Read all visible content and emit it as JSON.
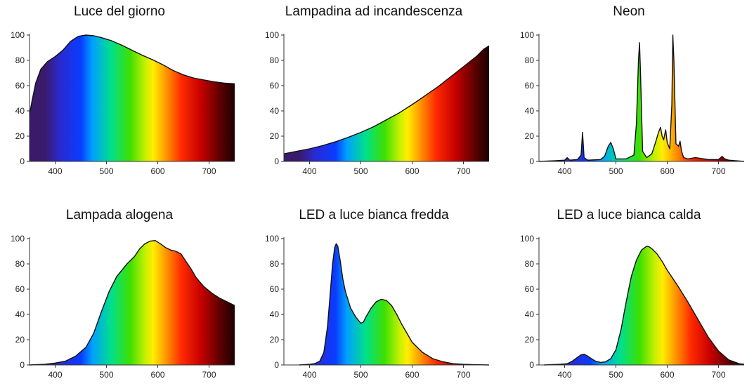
{
  "chart_data": [
    {
      "type": "area",
      "title": "Luce del giorno",
      "xlim": [
        350,
        750
      ],
      "ylim": [
        0,
        100
      ],
      "xticks": [
        400,
        500,
        600,
        700
      ],
      "yticks": [
        0,
        20,
        40,
        60,
        80,
        100
      ],
      "x": [
        350,
        355,
        362,
        372,
        385,
        400,
        415,
        430,
        445,
        460,
        475,
        490,
        510,
        530,
        550,
        570,
        590,
        610,
        630,
        650,
        670,
        690,
        710,
        730,
        750
      ],
      "y": [
        37,
        48,
        62,
        73,
        79,
        83,
        88,
        95,
        99,
        100,
        99.5,
        98,
        95.5,
        92,
        88,
        84,
        80.5,
        76.5,
        72,
        68.5,
        66,
        64.5,
        63,
        62,
        61.5
      ]
    },
    {
      "type": "area",
      "title": "Lampadina ad incandescenza",
      "xlim": [
        350,
        750
      ],
      "ylim": [
        0,
        100
      ],
      "xticks": [
        400,
        500,
        600,
        700
      ],
      "yticks": [
        0,
        20,
        40,
        60,
        80,
        100
      ],
      "x": [
        350,
        375,
        400,
        425,
        450,
        475,
        500,
        525,
        550,
        575,
        600,
        625,
        650,
        675,
        700,
        725,
        740,
        750
      ],
      "y": [
        6,
        8,
        10,
        12.5,
        15.5,
        19,
        23,
        27.5,
        33,
        38.5,
        45,
        52,
        59,
        67,
        75,
        83,
        89,
        91.5
      ]
    },
    {
      "type": "area",
      "title": "Neon",
      "xlim": [
        350,
        750
      ],
      "ylim": [
        0,
        100
      ],
      "xticks": [
        400,
        500,
        600,
        700
      ],
      "yticks": [
        0,
        20,
        40,
        60,
        80,
        100
      ],
      "x": [
        350,
        380,
        400,
        405,
        410,
        425,
        432,
        435,
        438,
        445,
        470,
        478,
        485,
        490,
        495,
        500,
        520,
        535,
        540,
        544,
        546,
        548,
        552,
        560,
        570,
        578,
        583,
        587,
        590,
        593,
        597,
        600,
        605,
        609,
        611,
        613,
        617,
        622,
        625,
        628,
        632,
        640,
        655,
        680,
        700,
        707,
        712,
        720,
        750
      ],
      "y": [
        0,
        0.5,
        1,
        3,
        1,
        1.5,
        5,
        23,
        3,
        1,
        1.5,
        4,
        12,
        15,
        10,
        2,
        2,
        5,
        30,
        80,
        94,
        70,
        8,
        3,
        6,
        16,
        23,
        27,
        20,
        17,
        25,
        15,
        10,
        45,
        100,
        80,
        14,
        12,
        16,
        8,
        3,
        2,
        3,
        1.5,
        1.5,
        4,
        2,
        1,
        0
      ]
    },
    {
      "type": "area",
      "title": "Lampada alogena",
      "xlim": [
        350,
        750
      ],
      "ylim": [
        0,
        100
      ],
      "xticks": [
        400,
        500,
        600,
        700
      ],
      "yticks": [
        0,
        20,
        40,
        60,
        80,
        100
      ],
      "x": [
        350,
        380,
        400,
        420,
        440,
        460,
        475,
        490,
        505,
        520,
        540,
        555,
        565,
        575,
        585,
        595,
        605,
        615,
        625,
        635,
        645,
        655,
        665,
        675,
        690,
        705,
        720,
        735,
        750
      ],
      "y": [
        0,
        0.5,
        1.5,
        3,
        7,
        14,
        25,
        42,
        58,
        70,
        80,
        86,
        92,
        96,
        98,
        98.5,
        96,
        93,
        91,
        90,
        88,
        82,
        76,
        69,
        62,
        57,
        53,
        50,
        47
      ]
    },
    {
      "type": "area",
      "title": "LED a luce bianca fredda",
      "xlim": [
        350,
        750
      ],
      "ylim": [
        0,
        100
      ],
      "xticks": [
        400,
        500,
        600,
        700
      ],
      "yticks": [
        0,
        20,
        40,
        60,
        80,
        100
      ],
      "x": [
        380,
        400,
        410,
        420,
        428,
        435,
        440,
        445,
        449,
        452,
        455,
        460,
        465,
        470,
        480,
        490,
        500,
        505,
        510,
        520,
        530,
        540,
        550,
        560,
        570,
        580,
        590,
        600,
        620,
        640,
        660,
        680,
        700,
        720,
        750
      ],
      "y": [
        0,
        0.5,
        1,
        3,
        10,
        30,
        55,
        80,
        93,
        96,
        94,
        82,
        68,
        58,
        45,
        38,
        33,
        34,
        38,
        45,
        50,
        52,
        51,
        47,
        40,
        32,
        25,
        18,
        10,
        5,
        2.5,
        1,
        0.5,
        0.2,
        0
      ]
    },
    {
      "type": "area",
      "title": "LED a luce bianca calda",
      "xlim": [
        350,
        750
      ],
      "ylim": [
        0,
        100
      ],
      "xticks": [
        400,
        500,
        600,
        700
      ],
      "yticks": [
        0,
        20,
        40,
        60,
        80,
        100
      ],
      "x": [
        360,
        390,
        405,
        415,
        425,
        432,
        438,
        445,
        452,
        460,
        470,
        480,
        490,
        500,
        510,
        520,
        530,
        540,
        550,
        560,
        565,
        570,
        580,
        590,
        600,
        610,
        620,
        640,
        660,
        680,
        700,
        720,
        740,
        750
      ],
      "y": [
        0,
        0.5,
        1,
        3,
        6,
        8,
        8.5,
        7,
        5,
        3,
        2,
        2.5,
        5,
        12,
        28,
        50,
        70,
        83,
        91,
        94,
        93.5,
        92,
        88,
        82,
        75,
        69,
        63,
        50,
        36,
        22,
        11,
        4,
        1,
        0.5
      ]
    }
  ]
}
